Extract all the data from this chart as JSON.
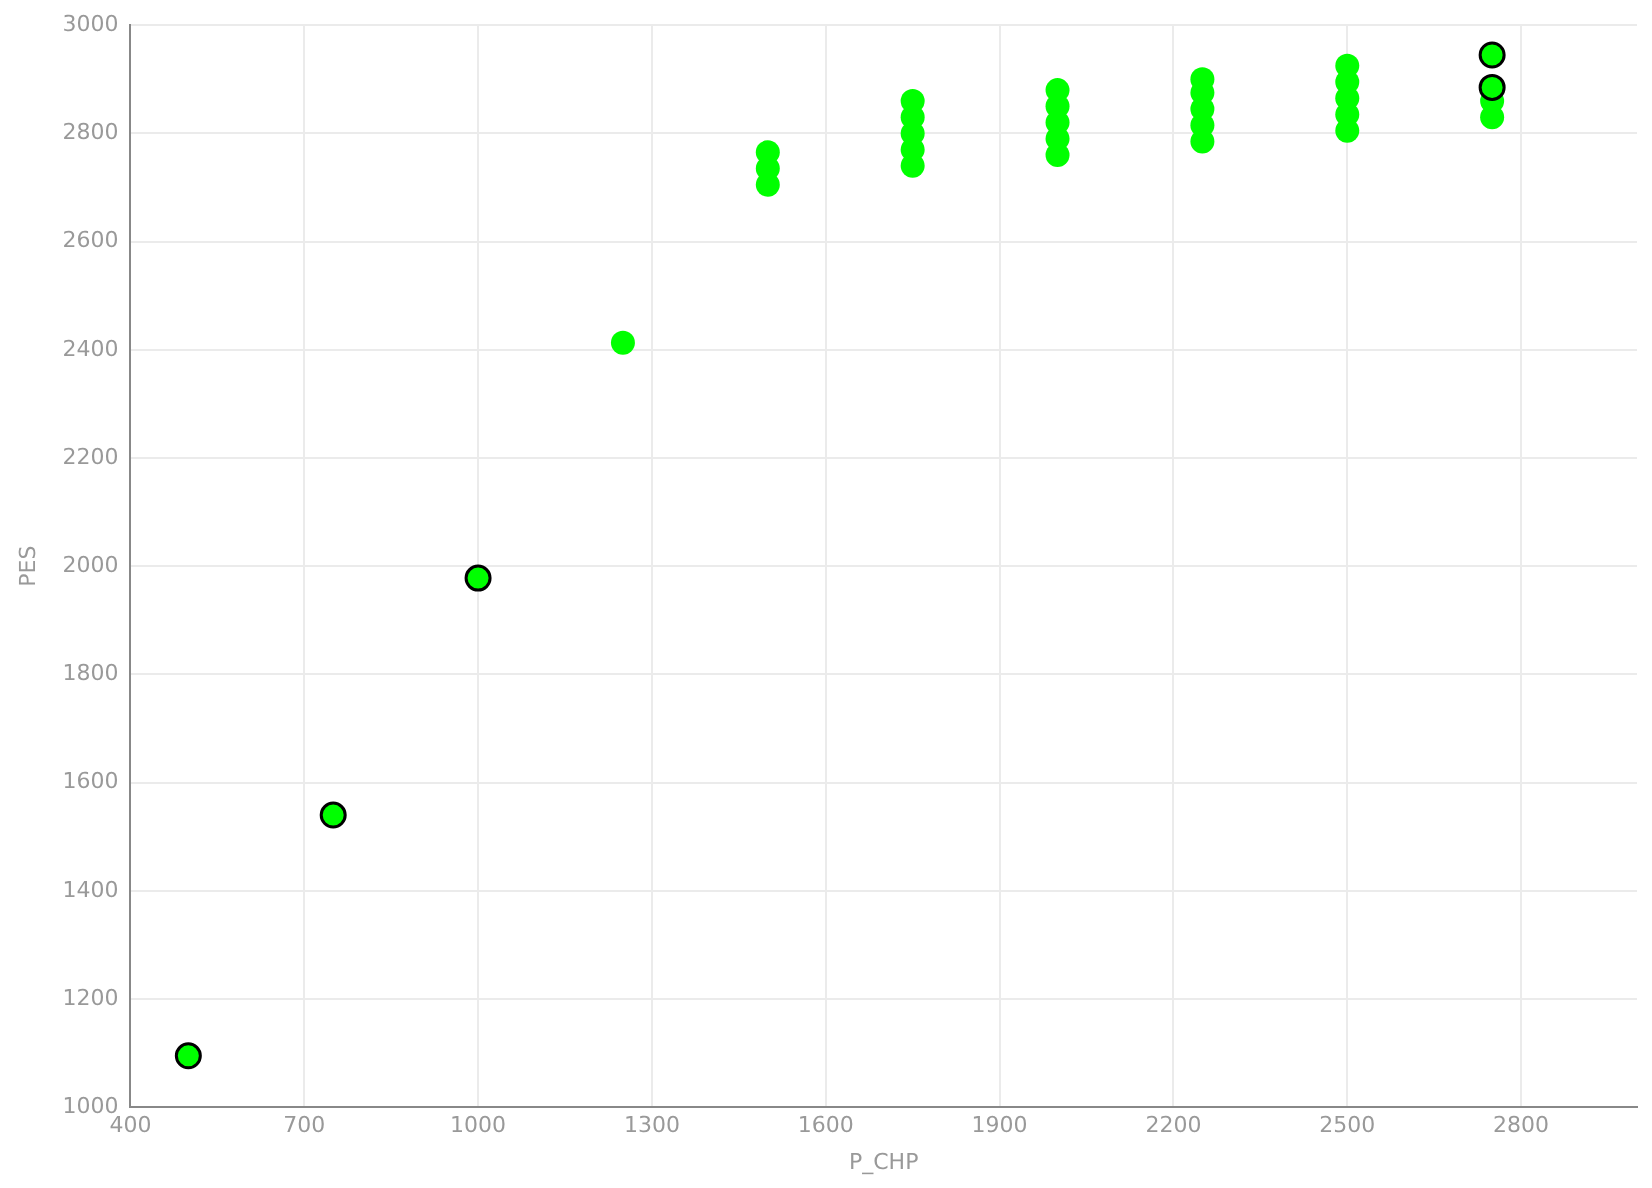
{
  "chart_data": {
    "type": "scatter",
    "xlabel": "P_CHP",
    "ylabel": "PES",
    "xlim": [
      400,
      3000
    ],
    "xticks": [
      400,
      700,
      1000,
      1300,
      1600,
      1900,
      2200,
      2500,
      2800
    ],
    "ylim": [
      1000,
      3000
    ],
    "yticks": [
      1000,
      1200,
      1400,
      1600,
      1800,
      2000,
      2200,
      2400,
      2600,
      2800,
      3000
    ],
    "grid": true,
    "legend": false,
    "marker": "circle",
    "series": [
      {
        "color": "#00ff00",
        "x": [
          1250,
          1500,
          1500,
          1500,
          1750,
          1750,
          1750,
          1750,
          1750,
          2000,
          2000,
          2000,
          2000,
          2000,
          2250,
          2250,
          2250,
          2250,
          2250,
          2500,
          2500,
          2500,
          2500,
          2500,
          2750,
          2750
        ],
        "values": [
          2413,
          2705,
          2735,
          2765,
          2740,
          2770,
          2800,
          2830,
          2860,
          2760,
          2790,
          2820,
          2850,
          2880,
          2785,
          2815,
          2845,
          2875,
          2900,
          2805,
          2835,
          2865,
          2895,
          2925,
          2830,
          2860
        ]
      },
      {
        "color": "#00ff00",
        "x": [
          500,
          750,
          1000,
          2750,
          2750
        ],
        "values": [
          1095,
          1540,
          1978,
          2885,
          2945
        ]
      }
    ]
  }
}
